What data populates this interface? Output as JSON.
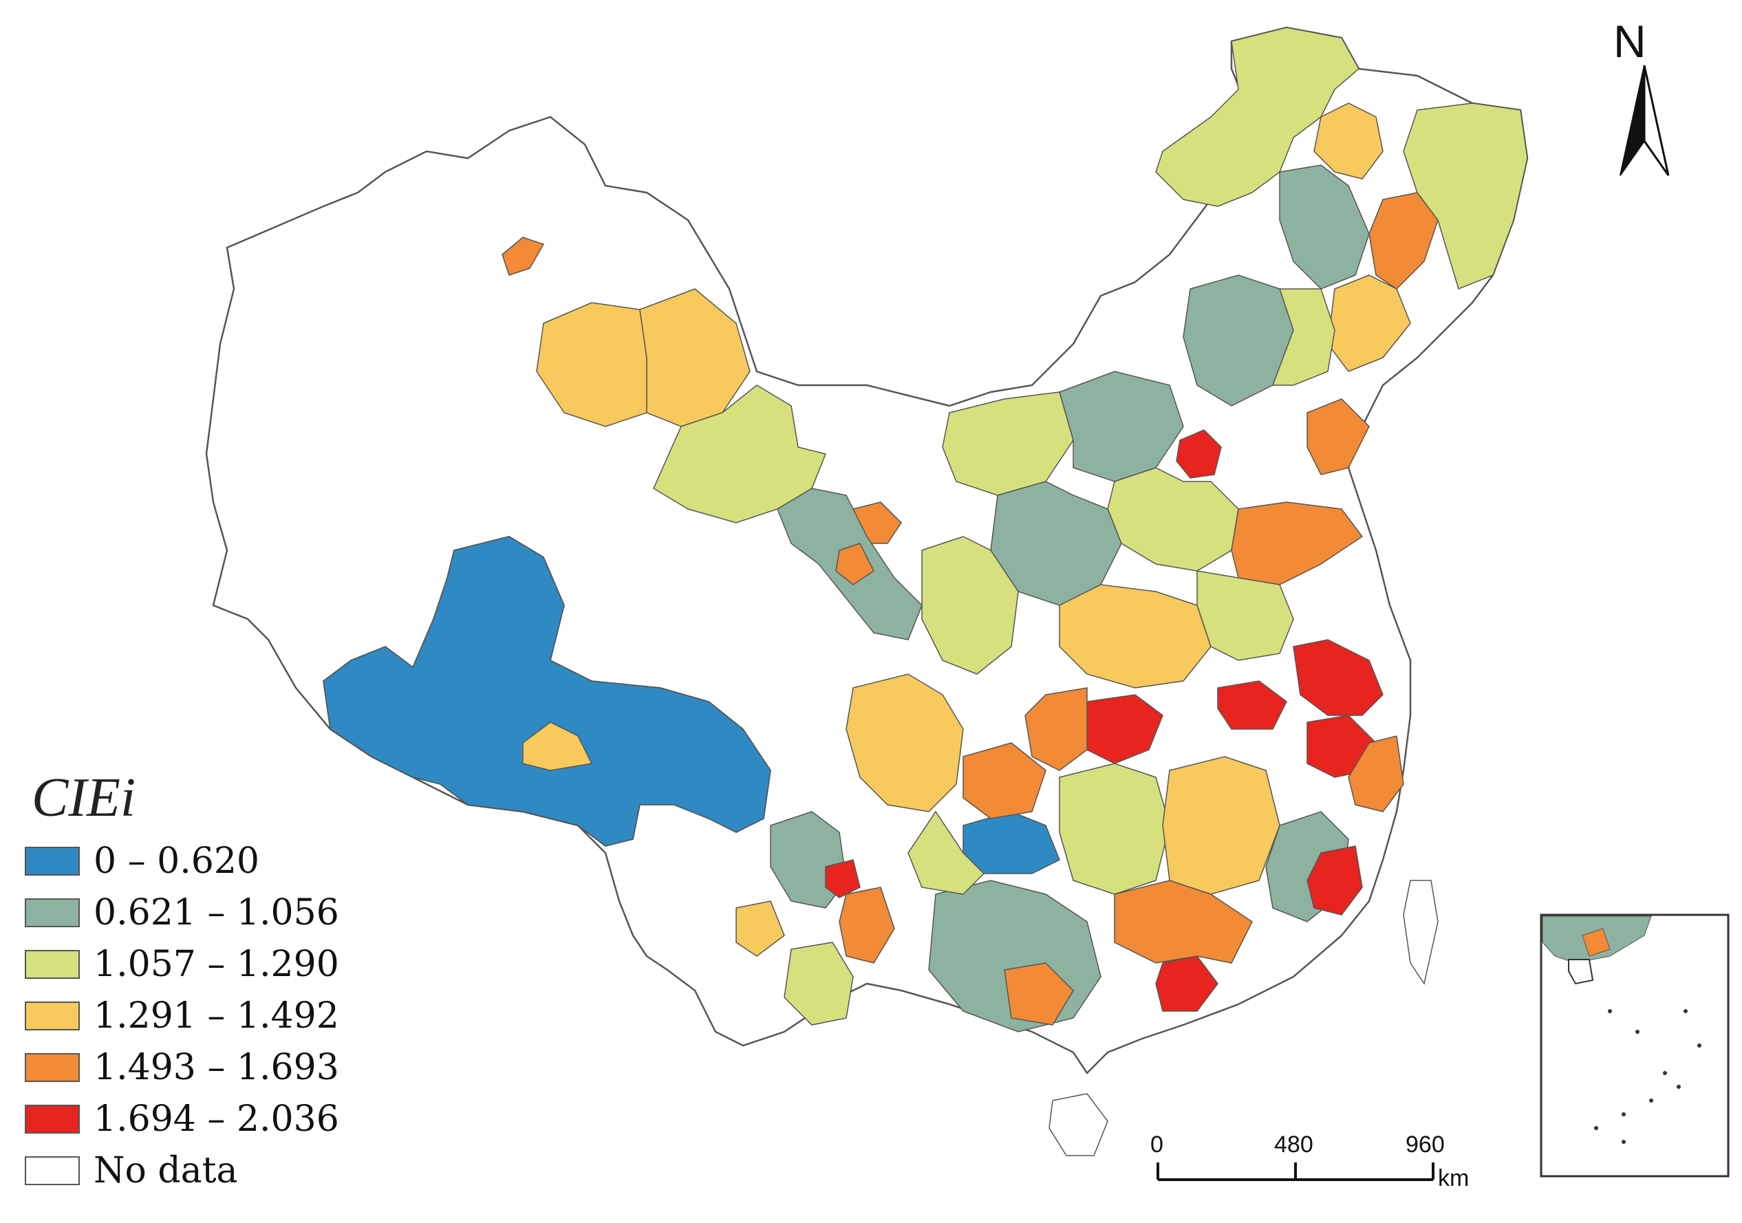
{
  "legend": {
    "title": "CIEi",
    "items": [
      {
        "label": "0 – 0.620",
        "color": "#2f8ac4"
      },
      {
        "label": "0.621 – 1.056",
        "color": "#8db3a0"
      },
      {
        "label": "1.057 – 1.290",
        "color": "#d6e17e"
      },
      {
        "label": "1.291 – 1.492",
        "color": "#f8c95c"
      },
      {
        "label": "1.493 – 1.693",
        "color": "#f28a36"
      },
      {
        "label": "1.694 – 2.036",
        "color": "#e8241f"
      },
      {
        "label": "No data",
        "color": "#ffffff"
      }
    ]
  },
  "north_arrow": {
    "label": "N"
  },
  "scale_bar": {
    "ticks": [
      "0",
      "480",
      "960"
    ],
    "unit": "km"
  },
  "colors": {
    "outline": "#555555",
    "country_outline": "#333333"
  }
}
